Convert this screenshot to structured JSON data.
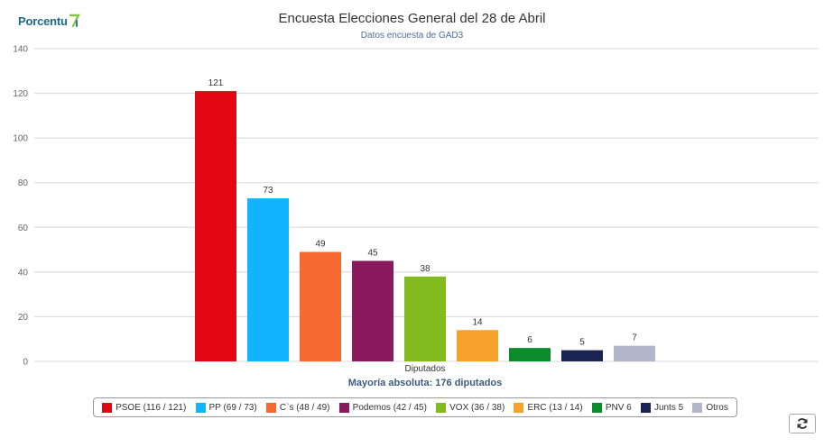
{
  "logo": {
    "text": "Porcentu",
    "mark": "al"
  },
  "refresh": {
    "icon": "refresh-icon"
  },
  "colors": {
    "axis_label": "#666666",
    "grid": "#d8d8d8",
    "subtitle": "#4a6b9a",
    "mayoria": "#3d5a80"
  },
  "chart_data": {
    "type": "bar",
    "title": "Encuesta Elecciones General del 28 de Abril",
    "subtitle": "Datos encuesta de GAD3",
    "xlabel": "Diputados",
    "annotation": "Mayoría absoluta: 176 diputados",
    "ylim": [
      0,
      140
    ],
    "yticks": [
      0,
      20,
      40,
      60,
      80,
      100,
      120,
      140
    ],
    "grid": true,
    "legend_position": "bottom",
    "series": [
      {
        "name": "PSOE (116 / 121)",
        "value": 121,
        "label": "121",
        "color": "#e30613"
      },
      {
        "name": "PP (69 / 73)",
        "value": 73,
        "label": "73",
        "color": "#12b4ff"
      },
      {
        "name": "C`s (48 / 49)",
        "value": 49,
        "label": "49",
        "color": "#f7692e"
      },
      {
        "name": "Podemos (42 / 45)",
        "value": 45,
        "label": "45",
        "color": "#8a1a5e"
      },
      {
        "name": "VOX (36 / 38)",
        "value": 38,
        "label": "38",
        "color": "#83bb1e"
      },
      {
        "name": "ERC (13 / 14)",
        "value": 14,
        "label": "14",
        "color": "#f5a12a"
      },
      {
        "name": "PNV 6",
        "value": 6,
        "label": "6",
        "color": "#0b8b2c"
      },
      {
        "name": "Junts 5",
        "value": 5,
        "label": "5",
        "color": "#1a2352"
      },
      {
        "name": "Otros",
        "value": 7,
        "label": "7",
        "color": "#b3b5ca"
      }
    ]
  }
}
